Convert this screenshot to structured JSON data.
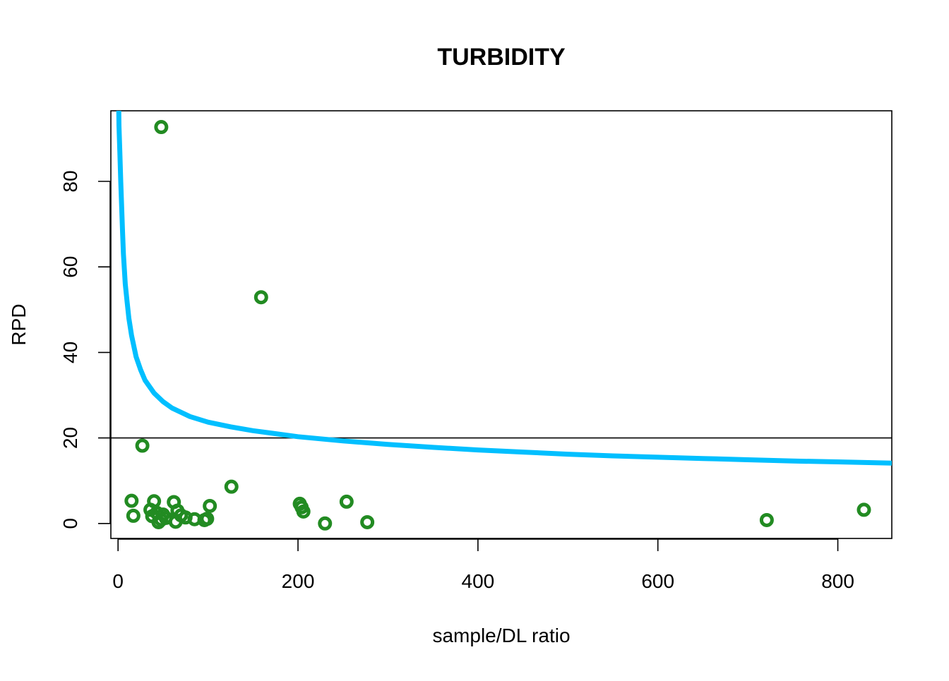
{
  "chart_data": {
    "type": "scatter",
    "title": "TURBIDITY",
    "xlabel": "sample/DL ratio",
    "ylabel": "RPD",
    "xlim": [
      -8,
      860
    ],
    "ylim": [
      -3.5,
      96.5
    ],
    "x_ticks": [
      0,
      200,
      400,
      600,
      800
    ],
    "y_ticks": [
      0,
      20,
      40,
      60,
      80
    ],
    "grid": false,
    "legend": "none",
    "colors": {
      "points": "#228B22",
      "curve": "#00BFFF",
      "reference_line": "#000000",
      "axes": "#000000"
    },
    "reference_line": {
      "y": 20
    },
    "curve": {
      "description_of_shape": "decreasing from top-left, crossing 20 near x=200",
      "points": [
        [
          0.8,
          96.5
        ],
        [
          1,
          93
        ],
        [
          2,
          87
        ],
        [
          3,
          80
        ],
        [
          4,
          74
        ],
        [
          5,
          68
        ],
        [
          6,
          63
        ],
        [
          8,
          56
        ],
        [
          10,
          52
        ],
        [
          12,
          48
        ],
        [
          15,
          44
        ],
        [
          20,
          39
        ],
        [
          25,
          36
        ],
        [
          30,
          33.5
        ],
        [
          40,
          30.5
        ],
        [
          50,
          28.5
        ],
        [
          60,
          27
        ],
        [
          80,
          25
        ],
        [
          100,
          23.7
        ],
        [
          125,
          22.6
        ],
        [
          150,
          21.7
        ],
        [
          200,
          20.3
        ],
        [
          250,
          19.3
        ],
        [
          300,
          18.5
        ],
        [
          350,
          17.8
        ],
        [
          400,
          17.2
        ],
        [
          450,
          16.7
        ],
        [
          500,
          16.2
        ],
        [
          550,
          15.8
        ],
        [
          600,
          15.5
        ],
        [
          650,
          15.2
        ],
        [
          700,
          14.9
        ],
        [
          750,
          14.6
        ],
        [
          800,
          14.4
        ],
        [
          860,
          14.1
        ]
      ]
    },
    "points": [
      {
        "x": 48,
        "y": 92.7
      },
      {
        "x": 159,
        "y": 52.9
      },
      {
        "x": 27,
        "y": 18.2
      },
      {
        "x": 15,
        "y": 5.3
      },
      {
        "x": 17,
        "y": 1.8
      },
      {
        "x": 36,
        "y": 3.2
      },
      {
        "x": 38,
        "y": 1.7
      },
      {
        "x": 40,
        "y": 5.2
      },
      {
        "x": 43,
        "y": 2.5
      },
      {
        "x": 45,
        "y": 0.3
      },
      {
        "x": 48,
        "y": 0.9
      },
      {
        "x": 50,
        "y": 2.1
      },
      {
        "x": 53,
        "y": 1.3
      },
      {
        "x": 62,
        "y": 5.0
      },
      {
        "x": 64,
        "y": 0.4
      },
      {
        "x": 66,
        "y": 3.0
      },
      {
        "x": 70,
        "y": 1.9
      },
      {
        "x": 75,
        "y": 1.4
      },
      {
        "x": 85,
        "y": 1.0
      },
      {
        "x": 96,
        "y": 0.8
      },
      {
        "x": 99,
        "y": 1.1
      },
      {
        "x": 102,
        "y": 4.1
      },
      {
        "x": 126,
        "y": 8.6
      },
      {
        "x": 202,
        "y": 4.6
      },
      {
        "x": 204,
        "y": 3.8
      },
      {
        "x": 206,
        "y": 2.8
      },
      {
        "x": 230,
        "y": 0.0
      },
      {
        "x": 254,
        "y": 5.1
      },
      {
        "x": 277,
        "y": 0.3
      },
      {
        "x": 721,
        "y": 0.8
      },
      {
        "x": 829,
        "y": 3.2
      }
    ]
  }
}
